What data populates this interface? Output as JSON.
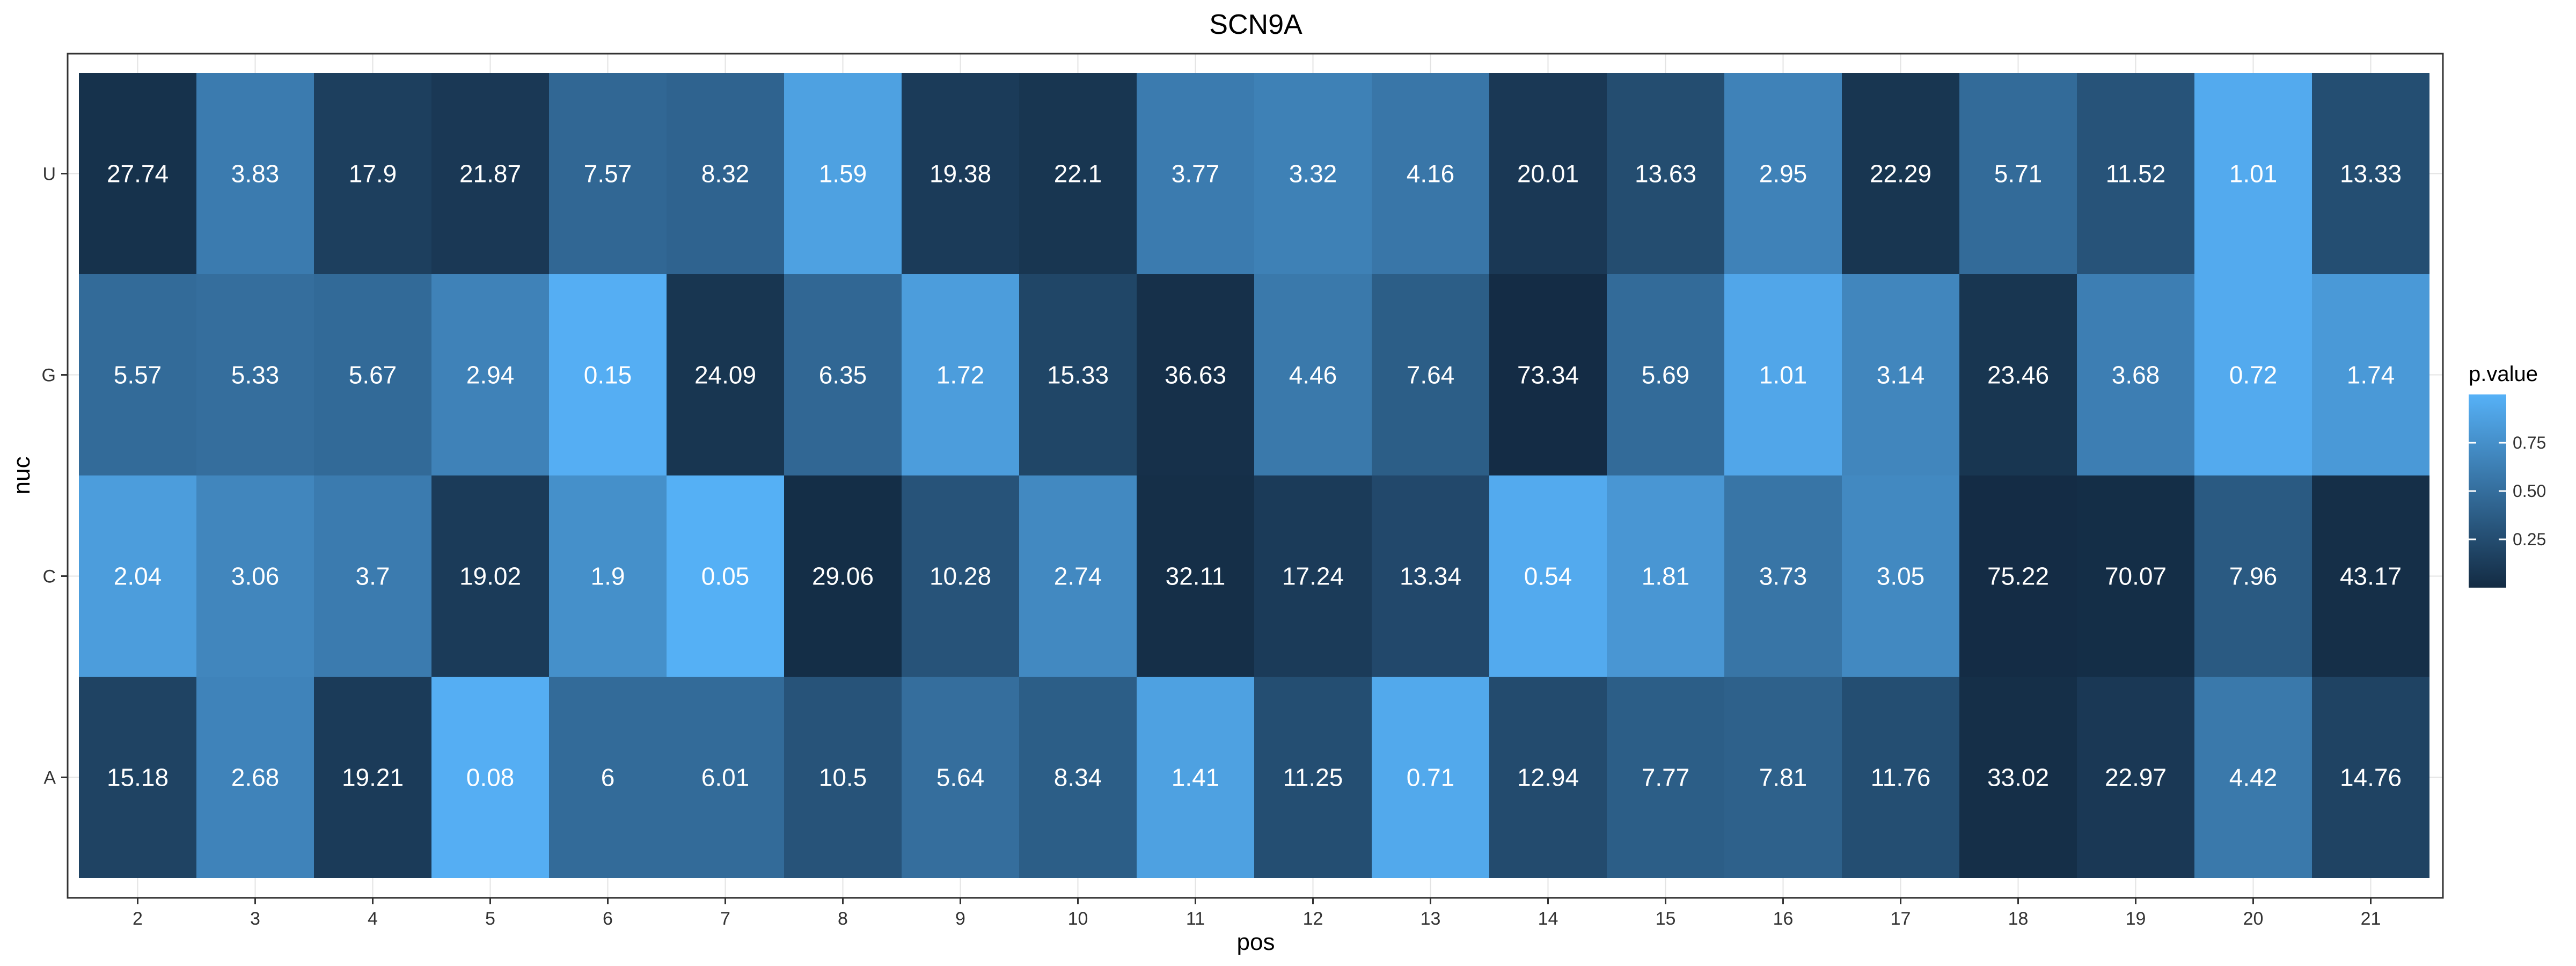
{
  "chart_data": {
    "type": "heatmap",
    "title": "SCN9A",
    "xlabel": "pos",
    "ylabel": "nuc",
    "x": [
      "2",
      "3",
      "4",
      "5",
      "6",
      "7",
      "8",
      "9",
      "10",
      "11",
      "12",
      "13",
      "14",
      "15",
      "16",
      "17",
      "18",
      "19",
      "20",
      "21"
    ],
    "y": [
      "U",
      "G",
      "C",
      "A"
    ],
    "labels": {
      "U": [
        "27.74",
        "3.83",
        "17.9",
        "21.87",
        "7.57",
        "8.32",
        "1.59",
        "19.38",
        "22.1",
        "3.77",
        "3.32",
        "4.16",
        "20.01",
        "13.63",
        "2.95",
        "22.29",
        "5.71",
        "11.52",
        "1.01",
        "13.33"
      ],
      "G": [
        "5.57",
        "5.33",
        "5.67",
        "2.94",
        "0.15",
        "24.09",
        "6.35",
        "1.72",
        "15.33",
        "36.63",
        "4.46",
        "7.64",
        "73.34",
        "5.69",
        "1.01",
        "3.14",
        "23.46",
        "3.68",
        "0.72",
        "1.74"
      ],
      "C": [
        "2.04",
        "3.06",
        "3.7",
        "19.02",
        "1.9",
        "0.05",
        "29.06",
        "10.28",
        "2.74",
        "32.11",
        "17.24",
        "13.34",
        "0.54",
        "1.81",
        "3.73",
        "3.05",
        "75.22",
        "70.07",
        "7.96",
        "43.17"
      ],
      "A": [
        "15.18",
        "2.68",
        "19.21",
        "0.08",
        "6",
        "6.01",
        "10.5",
        "5.64",
        "8.34",
        "1.41",
        "11.25",
        "0.71",
        "12.94",
        "7.77",
        "7.81",
        "11.76",
        "33.02",
        "22.97",
        "4.42",
        "14.76"
      ]
    },
    "fill": {
      "U": [
        0.05,
        0.6,
        0.15,
        0.1,
        0.45,
        0.42,
        0.88,
        0.12,
        0.08,
        0.6,
        0.64,
        0.56,
        0.1,
        0.25,
        0.65,
        0.08,
        0.48,
        0.3,
        0.95,
        0.26
      ],
      "G": [
        0.48,
        0.5,
        0.47,
        0.65,
        0.98,
        0.08,
        0.45,
        0.85,
        0.2,
        0.04,
        0.58,
        0.38,
        0.01,
        0.48,
        0.92,
        0.68,
        0.08,
        0.62,
        0.95,
        0.82
      ],
      "C": [
        0.85,
        0.68,
        0.6,
        0.12,
        0.75,
        0.99,
        0.02,
        0.3,
        0.7,
        0.03,
        0.12,
        0.22,
        0.95,
        0.8,
        0.55,
        0.7,
        0.01,
        0.02,
        0.35,
        0.03
      ],
      "A": [
        0.18,
        0.66,
        0.12,
        0.98,
        0.48,
        0.48,
        0.3,
        0.5,
        0.38,
        0.88,
        0.26,
        0.94,
        0.24,
        0.38,
        0.4,
        0.26,
        0.03,
        0.1,
        0.58,
        0.18
      ]
    },
    "legend": {
      "title": "p.value",
      "ticks": [
        0.25,
        0.5,
        0.75
      ],
      "tick_labels": [
        "0.25",
        "0.50",
        "0.75"
      ],
      "range": [
        0,
        1
      ],
      "low_color": "#132B43",
      "high_color": "#56B1F7",
      "placement": "right"
    },
    "grid": true
  }
}
